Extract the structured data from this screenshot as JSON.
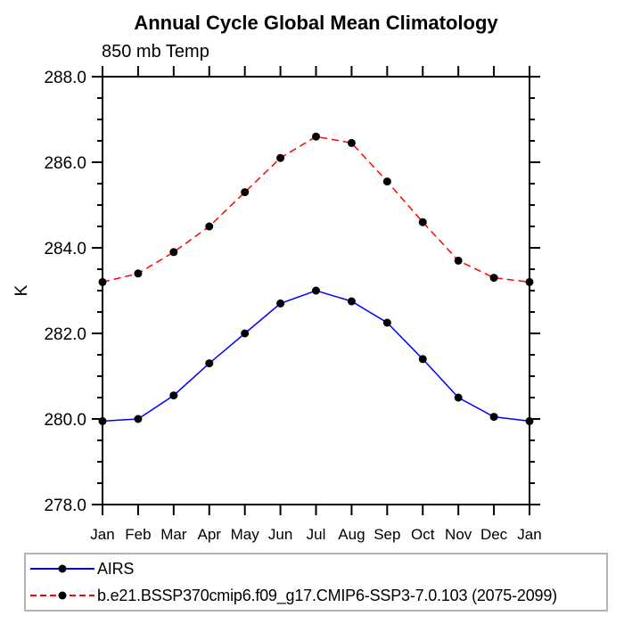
{
  "title": "Annual Cycle Global Mean Climatology",
  "subtitle": "850 mb Temp",
  "chart_data": {
    "type": "line",
    "x_categories": [
      "Jan",
      "Feb",
      "Mar",
      "Apr",
      "May",
      "Jun",
      "Jul",
      "Aug",
      "Sep",
      "Oct",
      "Nov",
      "Dec",
      "Jan"
    ],
    "xlabel": "",
    "ylabel": "K",
    "ylim": [
      278.0,
      288.0
    ],
    "y_major_values": [
      278,
      280,
      282,
      284,
      286,
      288
    ],
    "y_tick_labels": [
      "278.0",
      "280.0",
      "282.0",
      "284.0",
      "286.0",
      "288.0"
    ],
    "y_minor_step": 0.5,
    "grid": false,
    "axis_color": "#000000",
    "legend_position": "bottom-left-box",
    "series": [
      {
        "name": "AIRS",
        "color": "#0000ff",
        "line_style": "solid",
        "marker": "filled-circle",
        "marker_color": "#000000",
        "values": [
          279.95,
          280.0,
          280.55,
          281.3,
          282.0,
          282.7,
          283.0,
          282.75,
          282.25,
          281.4,
          280.5,
          280.05,
          279.95
        ]
      },
      {
        "name": "b.e21.BSSP370cmip6.f09_g17.CMIP6-SSP3-7.0.103 (2075-2099)",
        "color": "#ff0000",
        "line_style": "dashed",
        "marker": "filled-circle",
        "marker_color": "#000000",
        "values": [
          283.2,
          283.4,
          283.9,
          284.5,
          285.3,
          286.1,
          286.6,
          286.45,
          285.55,
          284.6,
          283.7,
          283.3,
          283.2
        ]
      }
    ]
  }
}
